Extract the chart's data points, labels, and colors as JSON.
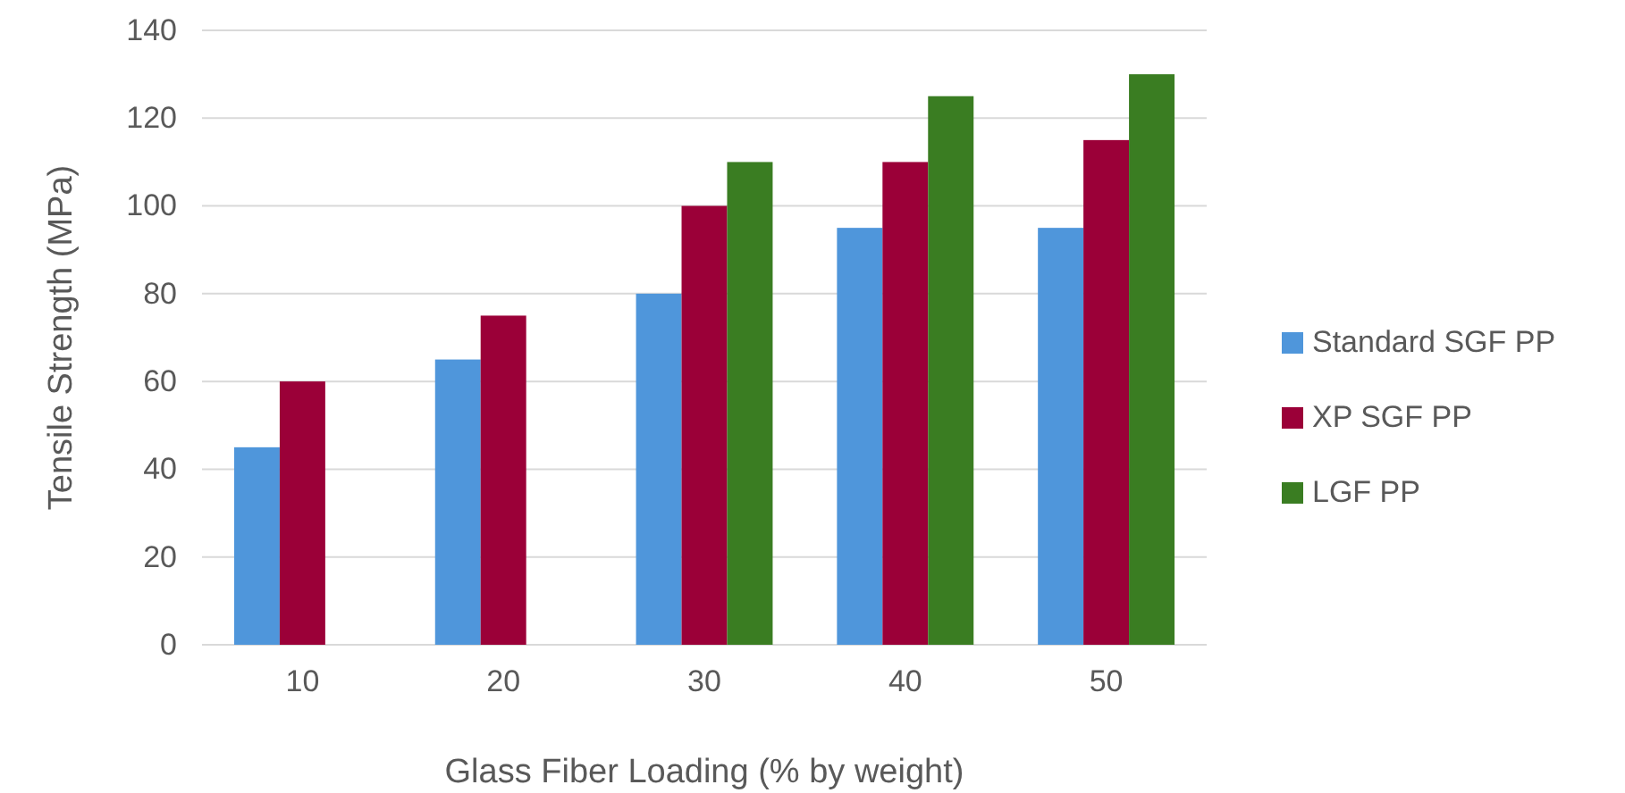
{
  "chart_data": {
    "type": "bar",
    "xlabel": "Glass Fiber Loading (% by weight)",
    "ylabel": "Tensile Strength (MPa)",
    "categories": [
      "10",
      "20",
      "30",
      "40",
      "50"
    ],
    "series": [
      {
        "name": "Standard SGF PP",
        "color": "#4f96db",
        "values": [
          45,
          65,
          80,
          95,
          95
        ]
      },
      {
        "name": "XP SGF PP",
        "color": "#9b0038",
        "values": [
          60,
          75,
          100,
          110,
          115
        ]
      },
      {
        "name": "LGF PP",
        "color": "#3a7d22",
        "values": [
          null,
          null,
          110,
          125,
          130
        ]
      }
    ],
    "ylim": [
      0,
      140
    ],
    "yticks": [
      0,
      20,
      40,
      60,
      80,
      100,
      120,
      140
    ],
    "grid": "y",
    "legend": "right"
  }
}
